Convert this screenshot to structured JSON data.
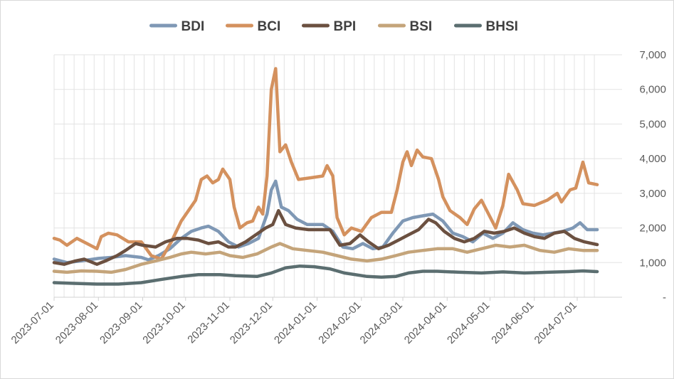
{
  "chart_data": {
    "type": "line",
    "title": "",
    "xlabel": "",
    "ylabel": "",
    "ylim": [
      0,
      7000
    ],
    "xlim": [
      "2023-07-01",
      "2024-07-17"
    ],
    "y_axis_position": "right",
    "y_ticks": [
      {
        "value": 0,
        "label": "-"
      },
      {
        "value": 1000,
        "label": "1,000"
      },
      {
        "value": 2000,
        "label": "2,000"
      },
      {
        "value": 3000,
        "label": "3,000"
      },
      {
        "value": 4000,
        "label": "4,000"
      },
      {
        "value": 5000,
        "label": "5,000"
      },
      {
        "value": 6000,
        "label": "6,000"
      },
      {
        "value": 7000,
        "label": "7,000"
      }
    ],
    "x_ticks": [
      "2023-07-01",
      "2023-08-01",
      "2023-09-01",
      "2023-10-01",
      "2023-11-01",
      "2023-12-01",
      "2024-01-01",
      "2024-02-01",
      "2024-03-01",
      "2024-04-01",
      "2024-05-01",
      "2024-06-01",
      "2024-07-01"
    ],
    "grid": true,
    "legend_position": "top",
    "series": [
      {
        "name": "BDI",
        "color": "#7f98b5",
        "points": [
          [
            "2023-07-01",
            1100
          ],
          [
            "2023-07-10",
            1000
          ],
          [
            "2023-07-20",
            1050
          ],
          [
            "2023-08-01",
            1120
          ],
          [
            "2023-08-10",
            1150
          ],
          [
            "2023-08-20",
            1200
          ],
          [
            "2023-08-31",
            1150
          ],
          [
            "2023-09-05",
            1080
          ],
          [
            "2023-09-12",
            1200
          ],
          [
            "2023-09-20",
            1400
          ],
          [
            "2023-09-28",
            1700
          ],
          [
            "2023-10-05",
            1900
          ],
          [
            "2023-10-12",
            2000
          ],
          [
            "2023-10-17",
            2050
          ],
          [
            "2023-10-24",
            1900
          ],
          [
            "2023-10-31",
            1600
          ],
          [
            "2023-11-07",
            1450
          ],
          [
            "2023-11-14",
            1550
          ],
          [
            "2023-11-21",
            1700
          ],
          [
            "2023-11-27",
            2400
          ],
          [
            "2023-11-30",
            3100
          ],
          [
            "2023-12-03",
            3350
          ],
          [
            "2023-12-07",
            2600
          ],
          [
            "2023-12-12",
            2500
          ],
          [
            "2023-12-18",
            2250
          ],
          [
            "2023-12-25",
            2100
          ],
          [
            "2024-01-05",
            2100
          ],
          [
            "2024-01-12",
            1900
          ],
          [
            "2024-01-19",
            1450
          ],
          [
            "2024-01-26",
            1400
          ],
          [
            "2024-02-02",
            1550
          ],
          [
            "2024-02-09",
            1400
          ],
          [
            "2024-02-16",
            1450
          ],
          [
            "2024-02-23",
            1850
          ],
          [
            "2024-03-01",
            2200
          ],
          [
            "2024-03-08",
            2300
          ],
          [
            "2024-03-15",
            2350
          ],
          [
            "2024-03-22",
            2400
          ],
          [
            "2024-03-29",
            2200
          ],
          [
            "2024-04-05",
            1850
          ],
          [
            "2024-04-12",
            1750
          ],
          [
            "2024-04-19",
            1600
          ],
          [
            "2024-04-26",
            1850
          ],
          [
            "2024-05-03",
            1700
          ],
          [
            "2024-05-10",
            1850
          ],
          [
            "2024-05-17",
            2150
          ],
          [
            "2024-05-24",
            1950
          ],
          [
            "2024-05-31",
            1850
          ],
          [
            "2024-06-07",
            1800
          ],
          [
            "2024-06-14",
            1850
          ],
          [
            "2024-06-21",
            1900
          ],
          [
            "2024-06-28",
            2000
          ],
          [
            "2024-07-03",
            2150
          ],
          [
            "2024-07-08",
            1950
          ],
          [
            "2024-07-15",
            1950
          ]
        ]
      },
      {
        "name": "BCI",
        "color": "#d4915e",
        "points": [
          [
            "2023-07-01",
            1700
          ],
          [
            "2023-07-05",
            1650
          ],
          [
            "2023-07-10",
            1500
          ],
          [
            "2023-07-17",
            1700
          ],
          [
            "2023-07-24",
            1550
          ],
          [
            "2023-07-31",
            1400
          ],
          [
            "2023-08-03",
            1750
          ],
          [
            "2023-08-08",
            1850
          ],
          [
            "2023-08-14",
            1800
          ],
          [
            "2023-08-22",
            1600
          ],
          [
            "2023-08-31",
            1600
          ],
          [
            "2023-09-07",
            1200
          ],
          [
            "2023-09-14",
            1100
          ],
          [
            "2023-09-21",
            1600
          ],
          [
            "2023-09-28",
            2200
          ],
          [
            "2023-10-03",
            2500
          ],
          [
            "2023-10-08",
            2800
          ],
          [
            "2023-10-12",
            3400
          ],
          [
            "2023-10-16",
            3500
          ],
          [
            "2023-10-20",
            3300
          ],
          [
            "2023-10-24",
            3400
          ],
          [
            "2023-10-27",
            3700
          ],
          [
            "2023-11-01",
            3400
          ],
          [
            "2023-11-04",
            2600
          ],
          [
            "2023-11-08",
            2000
          ],
          [
            "2023-11-13",
            2150
          ],
          [
            "2023-11-17",
            2200
          ],
          [
            "2023-11-21",
            2600
          ],
          [
            "2023-11-24",
            2400
          ],
          [
            "2023-11-27",
            3500
          ],
          [
            "2023-11-30",
            6000
          ],
          [
            "2023-12-03",
            6600
          ],
          [
            "2023-12-06",
            4200
          ],
          [
            "2023-12-10",
            4400
          ],
          [
            "2023-12-14",
            3900
          ],
          [
            "2023-12-19",
            3400
          ],
          [
            "2023-12-28",
            3450
          ],
          [
            "2024-01-05",
            3500
          ],
          [
            "2024-01-08",
            3800
          ],
          [
            "2024-01-12",
            3500
          ],
          [
            "2024-01-15",
            2300
          ],
          [
            "2024-01-20",
            1800
          ],
          [
            "2024-01-25",
            2000
          ],
          [
            "2024-02-01",
            1900
          ],
          [
            "2024-02-08",
            2300
          ],
          [
            "2024-02-15",
            2450
          ],
          [
            "2024-02-22",
            2450
          ],
          [
            "2024-02-26",
            3100
          ],
          [
            "2024-03-01",
            3900
          ],
          [
            "2024-03-04",
            4200
          ],
          [
            "2024-03-07",
            3800
          ],
          [
            "2024-03-11",
            4250
          ],
          [
            "2024-03-15",
            4050
          ],
          [
            "2024-03-21",
            4000
          ],
          [
            "2024-03-26",
            3400
          ],
          [
            "2024-03-29",
            2900
          ],
          [
            "2024-04-03",
            2500
          ],
          [
            "2024-04-10",
            2300
          ],
          [
            "2024-04-15",
            2100
          ],
          [
            "2024-04-20",
            2550
          ],
          [
            "2024-04-25",
            2800
          ],
          [
            "2024-04-30",
            2400
          ],
          [
            "2024-05-05",
            2000
          ],
          [
            "2024-05-10",
            2650
          ],
          [
            "2024-05-14",
            3550
          ],
          [
            "2024-05-20",
            3100
          ],
          [
            "2024-05-24",
            2700
          ],
          [
            "2024-06-01",
            2650
          ],
          [
            "2024-06-10",
            2800
          ],
          [
            "2024-06-17",
            3000
          ],
          [
            "2024-06-20",
            2750
          ],
          [
            "2024-06-26",
            3100
          ],
          [
            "2024-06-30",
            3150
          ],
          [
            "2024-07-05",
            3900
          ],
          [
            "2024-07-09",
            3300
          ],
          [
            "2024-07-15",
            3250
          ]
        ]
      },
      {
        "name": "BPI",
        "color": "#6b5040",
        "points": [
          [
            "2023-07-01",
            1000
          ],
          [
            "2023-07-08",
            950
          ],
          [
            "2023-07-16",
            1050
          ],
          [
            "2023-07-22",
            1100
          ],
          [
            "2023-07-31",
            950
          ],
          [
            "2023-08-06",
            1050
          ],
          [
            "2023-08-14",
            1200
          ],
          [
            "2023-08-20",
            1350
          ],
          [
            "2023-08-27",
            1550
          ],
          [
            "2023-09-01",
            1500
          ],
          [
            "2023-09-10",
            1450
          ],
          [
            "2023-09-17",
            1600
          ],
          [
            "2023-09-25",
            1700
          ],
          [
            "2023-10-02",
            1700
          ],
          [
            "2023-10-10",
            1650
          ],
          [
            "2023-10-17",
            1550
          ],
          [
            "2023-10-24",
            1600
          ],
          [
            "2023-10-31",
            1450
          ],
          [
            "2023-11-05",
            1450
          ],
          [
            "2023-11-12",
            1600
          ],
          [
            "2023-11-19",
            1800
          ],
          [
            "2023-11-26",
            2000
          ],
          [
            "2023-12-01",
            2100
          ],
          [
            "2023-12-05",
            2500
          ],
          [
            "2023-12-10",
            2100
          ],
          [
            "2023-12-17",
            2000
          ],
          [
            "2023-12-26",
            1950
          ],
          [
            "2024-01-03",
            1950
          ],
          [
            "2024-01-10",
            1950
          ],
          [
            "2024-01-17",
            1500
          ],
          [
            "2024-01-24",
            1550
          ],
          [
            "2024-01-31",
            1800
          ],
          [
            "2024-02-06",
            1600
          ],
          [
            "2024-02-13",
            1400
          ],
          [
            "2024-02-20",
            1500
          ],
          [
            "2024-02-27",
            1650
          ],
          [
            "2024-03-05",
            1800
          ],
          [
            "2024-03-12",
            1950
          ],
          [
            "2024-03-19",
            2250
          ],
          [
            "2024-03-24",
            2150
          ],
          [
            "2024-03-30",
            1900
          ],
          [
            "2024-04-06",
            1700
          ],
          [
            "2024-04-13",
            1600
          ],
          [
            "2024-04-20",
            1700
          ],
          [
            "2024-04-27",
            1900
          ],
          [
            "2024-05-04",
            1850
          ],
          [
            "2024-05-11",
            1900
          ],
          [
            "2024-05-18",
            2000
          ],
          [
            "2024-05-25",
            1850
          ],
          [
            "2024-06-01",
            1750
          ],
          [
            "2024-06-08",
            1700
          ],
          [
            "2024-06-15",
            1850
          ],
          [
            "2024-06-22",
            1900
          ],
          [
            "2024-06-29",
            1700
          ],
          [
            "2024-07-06",
            1600
          ],
          [
            "2024-07-15",
            1520
          ]
        ]
      },
      {
        "name": "BSI",
        "color": "#c4a47a",
        "points": [
          [
            "2023-07-01",
            750
          ],
          [
            "2023-07-10",
            720
          ],
          [
            "2023-07-20",
            760
          ],
          [
            "2023-07-31",
            750
          ],
          [
            "2023-08-10",
            720
          ],
          [
            "2023-08-20",
            800
          ],
          [
            "2023-08-31",
            950
          ],
          [
            "2023-09-10",
            1050
          ],
          [
            "2023-09-20",
            1150
          ],
          [
            "2023-09-28",
            1250
          ],
          [
            "2023-10-05",
            1300
          ],
          [
            "2023-10-15",
            1250
          ],
          [
            "2023-10-25",
            1300
          ],
          [
            "2023-11-01",
            1200
          ],
          [
            "2023-11-10",
            1150
          ],
          [
            "2023-11-20",
            1250
          ],
          [
            "2023-11-30",
            1450
          ],
          [
            "2023-12-06",
            1550
          ],
          [
            "2023-12-15",
            1400
          ],
          [
            "2023-12-25",
            1350
          ],
          [
            "2024-01-05",
            1300
          ],
          [
            "2024-01-15",
            1200
          ],
          [
            "2024-01-25",
            1100
          ],
          [
            "2024-02-05",
            1050
          ],
          [
            "2024-02-15",
            1100
          ],
          [
            "2024-02-25",
            1200
          ],
          [
            "2024-03-05",
            1300
          ],
          [
            "2024-03-15",
            1350
          ],
          [
            "2024-03-25",
            1400
          ],
          [
            "2024-04-05",
            1400
          ],
          [
            "2024-04-15",
            1300
          ],
          [
            "2024-04-25",
            1400
          ],
          [
            "2024-05-05",
            1500
          ],
          [
            "2024-05-15",
            1450
          ],
          [
            "2024-05-25",
            1500
          ],
          [
            "2024-06-05",
            1350
          ],
          [
            "2024-06-15",
            1300
          ],
          [
            "2024-06-25",
            1400
          ],
          [
            "2024-07-05",
            1350
          ],
          [
            "2024-07-15",
            1350
          ]
        ]
      },
      {
        "name": "BHSI",
        "color": "#5b6e70",
        "points": [
          [
            "2023-07-01",
            420
          ],
          [
            "2023-07-15",
            400
          ],
          [
            "2023-07-31",
            380
          ],
          [
            "2023-08-15",
            380
          ],
          [
            "2023-08-31",
            420
          ],
          [
            "2023-09-15",
            520
          ],
          [
            "2023-09-28",
            600
          ],
          [
            "2023-10-10",
            650
          ],
          [
            "2023-10-25",
            650
          ],
          [
            "2023-11-05",
            620
          ],
          [
            "2023-11-20",
            600
          ],
          [
            "2023-11-30",
            700
          ],
          [
            "2023-12-10",
            850
          ],
          [
            "2023-12-20",
            900
          ],
          [
            "2023-12-30",
            880
          ],
          [
            "2024-01-10",
            820
          ],
          [
            "2024-01-20",
            700
          ],
          [
            "2024-02-05",
            600
          ],
          [
            "2024-02-15",
            580
          ],
          [
            "2024-02-25",
            600
          ],
          [
            "2024-03-05",
            700
          ],
          [
            "2024-03-15",
            750
          ],
          [
            "2024-03-25",
            750
          ],
          [
            "2024-04-10",
            720
          ],
          [
            "2024-04-25",
            700
          ],
          [
            "2024-05-10",
            730
          ],
          [
            "2024-05-25",
            700
          ],
          [
            "2024-06-10",
            720
          ],
          [
            "2024-06-25",
            740
          ],
          [
            "2024-07-05",
            760
          ],
          [
            "2024-07-15",
            740
          ]
        ]
      }
    ]
  }
}
